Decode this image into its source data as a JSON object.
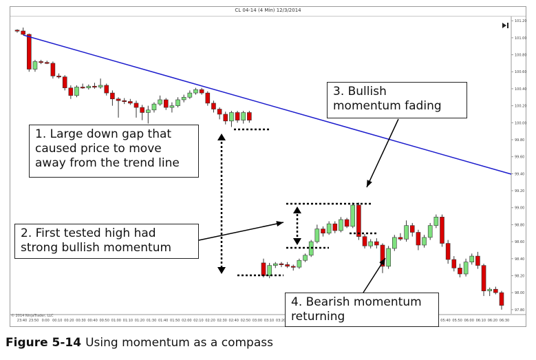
{
  "chart_data": {
    "type": "candlestick",
    "title": "CL 04-14 (4 Min) 12/3/2014",
    "y_ticks": [
      "101.20",
      "101.00",
      "100.80",
      "100.60",
      "100.40",
      "100.20",
      "100.00",
      "99.80",
      "99.60",
      "99.40",
      "99.20",
      "99.00",
      "98.80",
      "98.60",
      "98.40",
      "98.20",
      "98.00",
      "97.80"
    ],
    "ylim": [
      97.75,
      101.25
    ],
    "x_ticks": [
      "23:40",
      "23:50",
      "0:00",
      "00:10",
      "00:20",
      "00:30",
      "00:40",
      "00:50",
      "01:00",
      "01:10",
      "01:20",
      "01:30",
      "01:40",
      "01:50",
      "02:00",
      "02:10",
      "02:20",
      "02:30",
      "02:40",
      "02:50",
      "03:00",
      "03:10",
      "03:20",
      "03:30",
      "03:40",
      "03:50",
      "04:00",
      "04:10",
      "04:20",
      "04:30",
      "04:40",
      "04:50",
      "05:00",
      "05:10",
      "05:20",
      "05:30",
      "05:40",
      "05:50",
      "06:00",
      "06:10",
      "06:20",
      "06:30"
    ],
    "candles": [
      {
        "o": 101.09,
        "h": 101.1,
        "l": 101.06,
        "c": 101.08
      },
      {
        "o": 101.08,
        "h": 101.12,
        "l": 101.03,
        "c": 101.04
      },
      {
        "o": 101.04,
        "h": 101.05,
        "l": 100.6,
        "c": 100.63
      },
      {
        "o": 100.63,
        "h": 100.74,
        "l": 100.6,
        "c": 100.72
      },
      {
        "o": 100.72,
        "h": 100.74,
        "l": 100.69,
        "c": 100.71
      },
      {
        "o": 100.71,
        "h": 100.73,
        "l": 100.69,
        "c": 100.7
      },
      {
        "o": 100.7,
        "h": 100.72,
        "l": 100.52,
        "c": 100.55
      },
      {
        "o": 100.55,
        "h": 100.58,
        "l": 100.52,
        "c": 100.54
      },
      {
        "o": 100.54,
        "h": 100.56,
        "l": 100.38,
        "c": 100.41
      },
      {
        "o": 100.41,
        "h": 100.44,
        "l": 100.28,
        "c": 100.32
      },
      {
        "o": 100.32,
        "h": 100.44,
        "l": 100.3,
        "c": 100.42
      },
      {
        "o": 100.42,
        "h": 100.46,
        "l": 100.4,
        "c": 100.41
      },
      {
        "o": 100.41,
        "h": 100.45,
        "l": 100.39,
        "c": 100.43
      },
      {
        "o": 100.43,
        "h": 100.47,
        "l": 100.4,
        "c": 100.42
      },
      {
        "o": 100.42,
        "h": 100.52,
        "l": 100.4,
        "c": 100.44
      },
      {
        "o": 100.44,
        "h": 100.46,
        "l": 100.32,
        "c": 100.35
      },
      {
        "o": 100.35,
        "h": 100.38,
        "l": 100.2,
        "c": 100.28
      },
      {
        "o": 100.28,
        "h": 100.3,
        "l": 100.06,
        "c": 100.26
      },
      {
        "o": 100.26,
        "h": 100.29,
        "l": 100.22,
        "c": 100.25
      },
      {
        "o": 100.25,
        "h": 100.28,
        "l": 100.21,
        "c": 100.23
      },
      {
        "o": 100.23,
        "h": 100.26,
        "l": 100.06,
        "c": 100.18
      },
      {
        "o": 100.18,
        "h": 100.21,
        "l": 100.03,
        "c": 100.12
      },
      {
        "o": 100.12,
        "h": 100.2,
        "l": 99.99,
        "c": 100.15
      },
      {
        "o": 100.15,
        "h": 100.24,
        "l": 100.12,
        "c": 100.22
      },
      {
        "o": 100.22,
        "h": 100.32,
        "l": 100.2,
        "c": 100.27
      },
      {
        "o": 100.27,
        "h": 100.29,
        "l": 100.15,
        "c": 100.18
      },
      {
        "o": 100.18,
        "h": 100.24,
        "l": 100.12,
        "c": 100.2
      },
      {
        "o": 100.2,
        "h": 100.3,
        "l": 100.18,
        "c": 100.27
      },
      {
        "o": 100.27,
        "h": 100.33,
        "l": 100.24,
        "c": 100.3
      },
      {
        "o": 100.3,
        "h": 100.38,
        "l": 100.28,
        "c": 100.35
      },
      {
        "o": 100.35,
        "h": 100.41,
        "l": 100.33,
        "c": 100.39
      },
      {
        "o": 100.39,
        "h": 100.41,
        "l": 100.33,
        "c": 100.35
      },
      {
        "o": 100.35,
        "h": 100.37,
        "l": 100.2,
        "c": 100.23
      },
      {
        "o": 100.23,
        "h": 100.26,
        "l": 100.12,
        "c": 100.16
      },
      {
        "o": 100.16,
        "h": 100.18,
        "l": 100.04,
        "c": 100.1
      },
      {
        "o": 100.1,
        "h": 100.13,
        "l": 99.98,
        "c": 100.02
      },
      {
        "o": 100.02,
        "h": 100.14,
        "l": 99.95,
        "c": 100.12
      },
      {
        "o": 100.12,
        "h": 100.14,
        "l": 100.0,
        "c": 100.03
      },
      {
        "o": 100.03,
        "h": 100.14,
        "l": 99.99,
        "c": 100.12
      },
      {
        "o": 100.12,
        "h": 100.14,
        "l": 100.0,
        "c": 100.03
      },
      {
        "o": 98.35,
        "h": 98.4,
        "l": 98.18,
        "c": 98.2
      },
      {
        "o": 98.2,
        "h": 98.35,
        "l": 98.17,
        "c": 98.32
      },
      {
        "o": 98.32,
        "h": 98.36,
        "l": 98.29,
        "c": 98.34
      },
      {
        "o": 98.34,
        "h": 98.36,
        "l": 98.3,
        "c": 98.33
      },
      {
        "o": 98.33,
        "h": 98.36,
        "l": 98.29,
        "c": 98.31
      },
      {
        "o": 98.31,
        "h": 98.33,
        "l": 98.26,
        "c": 98.3
      },
      {
        "o": 98.3,
        "h": 98.4,
        "l": 98.28,
        "c": 98.38
      },
      {
        "o": 98.38,
        "h": 98.46,
        "l": 98.36,
        "c": 98.44
      },
      {
        "o": 98.44,
        "h": 98.62,
        "l": 98.42,
        "c": 98.6
      },
      {
        "o": 98.6,
        "h": 98.8,
        "l": 98.58,
        "c": 98.75
      },
      {
        "o": 98.75,
        "h": 98.78,
        "l": 98.66,
        "c": 98.7
      },
      {
        "o": 98.7,
        "h": 98.84,
        "l": 98.68,
        "c": 98.81
      },
      {
        "o": 98.81,
        "h": 98.84,
        "l": 98.7,
        "c": 98.73
      },
      {
        "o": 98.73,
        "h": 98.89,
        "l": 98.71,
        "c": 98.86
      },
      {
        "o": 98.86,
        "h": 98.88,
        "l": 98.76,
        "c": 98.78
      },
      {
        "o": 98.78,
        "h": 99.06,
        "l": 98.76,
        "c": 99.03
      },
      {
        "o": 99.03,
        "h": 99.06,
        "l": 98.62,
        "c": 98.66
      },
      {
        "o": 98.66,
        "h": 98.69,
        "l": 98.52,
        "c": 98.55
      },
      {
        "o": 98.55,
        "h": 98.63,
        "l": 98.52,
        "c": 98.6
      },
      {
        "o": 98.6,
        "h": 98.64,
        "l": 98.52,
        "c": 98.56
      },
      {
        "o": 98.56,
        "h": 98.58,
        "l": 98.23,
        "c": 98.31
      },
      {
        "o": 98.31,
        "h": 98.55,
        "l": 98.28,
        "c": 98.52
      },
      {
        "o": 98.52,
        "h": 98.68,
        "l": 98.49,
        "c": 98.65
      },
      {
        "o": 98.65,
        "h": 98.7,
        "l": 98.61,
        "c": 98.63
      },
      {
        "o": 98.63,
        "h": 98.85,
        "l": 98.6,
        "c": 98.79
      },
      {
        "o": 98.79,
        "h": 98.82,
        "l": 98.66,
        "c": 98.71
      },
      {
        "o": 98.71,
        "h": 98.74,
        "l": 98.5,
        "c": 98.56
      },
      {
        "o": 98.56,
        "h": 98.68,
        "l": 98.53,
        "c": 98.65
      },
      {
        "o": 98.65,
        "h": 98.82,
        "l": 98.62,
        "c": 98.79
      },
      {
        "o": 98.79,
        "h": 98.92,
        "l": 98.76,
        "c": 98.89
      },
      {
        "o": 98.89,
        "h": 98.92,
        "l": 98.54,
        "c": 98.58
      },
      {
        "o": 98.58,
        "h": 98.62,
        "l": 98.34,
        "c": 98.39
      },
      {
        "o": 98.39,
        "h": 98.43,
        "l": 98.25,
        "c": 98.29
      },
      {
        "o": 98.29,
        "h": 98.34,
        "l": 98.18,
        "c": 98.22
      },
      {
        "o": 98.22,
        "h": 98.4,
        "l": 98.19,
        "c": 98.36
      },
      {
        "o": 98.36,
        "h": 98.46,
        "l": 98.33,
        "c": 98.43
      },
      {
        "o": 98.43,
        "h": 98.48,
        "l": 98.28,
        "c": 98.32
      },
      {
        "o": 98.32,
        "h": 98.34,
        "l": 97.96,
        "c": 98.02
      },
      {
        "o": 98.02,
        "h": 98.06,
        "l": 97.96,
        "c": 98.04
      },
      {
        "o": 98.04,
        "h": 98.07,
        "l": 97.98,
        "c": 98.0
      },
      {
        "o": 98.0,
        "h": 98.02,
        "l": 97.8,
        "c": 97.85
      }
    ],
    "colors": {
      "up": "#7ee07e",
      "down": "#d90000",
      "trend": "#1a1acc",
      "wick": "#333333"
    }
  },
  "callouts": {
    "c1": "1. Large down gap that\ncaused price to move\naway from the trend line",
    "c2": "2. First tested high had\nstrong bullish momentum",
    "c3": "3. Bullish\nmomentum fading",
    "c4": "4. Bearish momentum\nreturning"
  },
  "caption": {
    "label": "Figure 5-14",
    "text": "Using momentum as a compass"
  },
  "copyright": "© 2014 NinjaTrader, LLC",
  "toolbar_icon": "play-end-icon"
}
